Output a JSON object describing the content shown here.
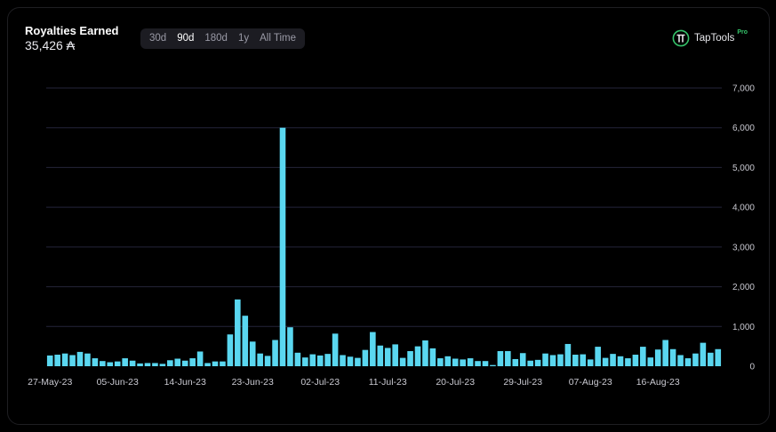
{
  "header": {
    "title": "Royalties Earned",
    "value": "35,426 ₳",
    "ranges": [
      "30d",
      "90d",
      "180d",
      "1y",
      "All Time"
    ],
    "active_range": "90d"
  },
  "brand": {
    "name": "TapTools",
    "badge": "Pro"
  },
  "colors": {
    "bar": "#5ad7f0",
    "grid": "#24243a",
    "text": "#c9c9d1",
    "brand_green": "#35c46a"
  },
  "chart_data": {
    "type": "bar",
    "title": "",
    "xlabel": "",
    "ylabel": "",
    "ylim": [
      0,
      7000
    ],
    "y_ticks": [
      "0",
      "1,000",
      "2,000",
      "3,000",
      "4,000",
      "5,000",
      "6,000",
      "7,000"
    ],
    "x_tick_labels": [
      "27-May-23",
      "05-Jun-23",
      "14-Jun-23",
      "23-Jun-23",
      "02-Jul-23",
      "11-Jul-23",
      "20-Jul-23",
      "29-Jul-23",
      "07-Aug-23",
      "16-Aug-23"
    ],
    "grid": true,
    "series": [
      {
        "values": [
          270,
          290,
          320,
          280,
          360,
          320,
          200,
          130,
          100,
          120,
          200,
          140,
          70,
          80,
          80,
          60,
          150,
          190,
          140,
          200,
          370,
          80,
          120,
          120,
          800,
          1680,
          1270,
          620,
          320,
          260,
          660,
          6000,
          980,
          340,
          220,
          300,
          270,
          310,
          820,
          280,
          240,
          210,
          410,
          860,
          520,
          460,
          550,
          210,
          380,
          500,
          650,
          450,
          200,
          250,
          190,
          170,
          200,
          130,
          130,
          30,
          380,
          380,
          180,
          330,
          140,
          160,
          320,
          280,
          300,
          560,
          290,
          300,
          170,
          490,
          210,
          310,
          250,
          200,
          290,
          490,
          220,
          420,
          660,
          430,
          280,
          200,
          320,
          590,
          340,
          430
        ]
      }
    ]
  }
}
